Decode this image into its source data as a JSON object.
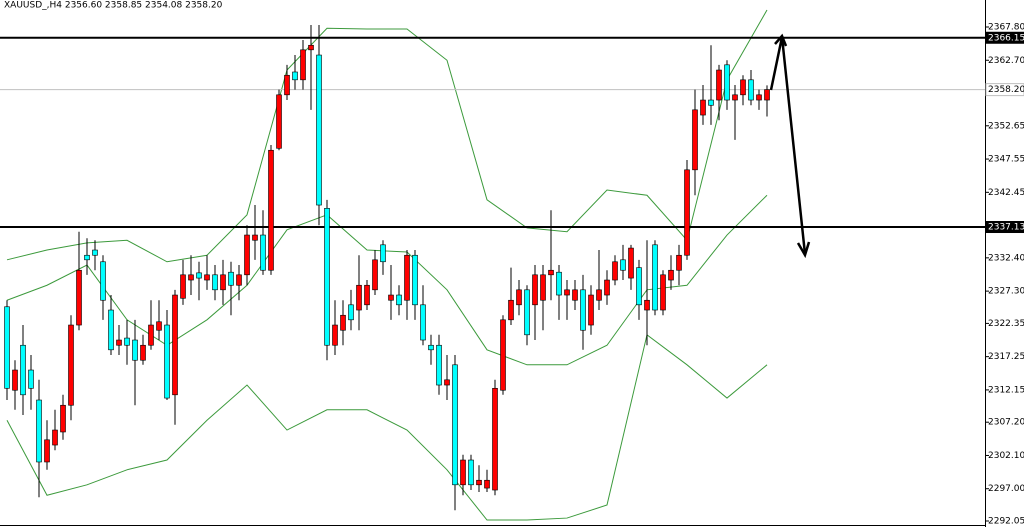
{
  "chart_data": {
    "type": "candlestick",
    "title": "XAUUSD_,H4  2356.60 2358.85 2354.08 2358.20",
    "up_color": "#ff0000",
    "down_color": "#00ffff",
    "ylim": [
      2291.13,
      2371.94
    ],
    "yticks": [
      {
        "value": 2367.8,
        "label": "2367.80"
      },
      {
        "value": 2362.7,
        "label": "2362.70"
      },
      2352.65,
      2347.55,
      2342.45,
      {
        "value": 2332.4,
        "label": "2332.40"
      },
      {
        "value": 2327.3,
        "label": "2327.30"
      },
      2322.35,
      2317.25,
      2312.15,
      {
        "value": 2307.2,
        "label": "2307.20"
      },
      {
        "value": 2302.1,
        "label": "2302.10"
      },
      {
        "value": 2297,
        "label": "2297.00"
      },
      2292.05
    ],
    "ohlc": [
      [
        2324.9,
        2325.9,
        2310.6,
        2312.4
      ],
      [
        2312.1,
        2316.7,
        2309.1,
        2315.2
      ],
      [
        2319.0,
        2322.1,
        2308.3,
        2311.4
      ],
      [
        2315.2,
        2317.5,
        2309.1,
        2312.4
      ],
      [
        2310.6,
        2313.7,
        2295.7,
        2301.1
      ],
      [
        2301.1,
        2307.5,
        2299.9,
        2304.5
      ],
      [
        2303.7,
        2309.1,
        2302.9,
        2306.0
      ],
      [
        2305.7,
        2311.4,
        2304.5,
        2309.8
      ],
      [
        2309.8,
        2323.6,
        2307.5,
        2322.1
      ],
      [
        2322.1,
        2336.4,
        2321.3,
        2330.5
      ],
      [
        2332.8,
        2335.4,
        2329.8,
        2332.1
      ],
      [
        2333.6,
        2335.1,
        2330.5,
        2332.8
      ],
      [
        2331.8,
        2332.8,
        2322.9,
        2325.9
      ],
      [
        2324.4,
        2326.7,
        2317.5,
        2318.3
      ],
      [
        2319.0,
        2322.1,
        2317.5,
        2319.8
      ],
      [
        2320.1,
        2322.9,
        2316.0,
        2319.0
      ],
      [
        2319.8,
        2322.9,
        2309.8,
        2316.7
      ],
      [
        2316.7,
        2320.6,
        2316.0,
        2319.0
      ],
      [
        2319.0,
        2325.9,
        2318.3,
        2322.1
      ],
      [
        2321.3,
        2325.9,
        2319.8,
        2322.6
      ],
      [
        2322.1,
        2324.4,
        2310.6,
        2310.9
      ],
      [
        2311.4,
        2327.5,
        2306.8,
        2326.7
      ],
      [
        2326.2,
        2332.1,
        2325.2,
        2329.8
      ],
      [
        2329.0,
        2332.8,
        2326.7,
        2329.8
      ],
      [
        2330.1,
        2331.8,
        2325.9,
        2329.3
      ],
      [
        2329.0,
        2332.8,
        2327.5,
        2329.8
      ],
      [
        2329.8,
        2331.3,
        2325.9,
        2327.5
      ],
      [
        2327.5,
        2332.1,
        2325.2,
        2329.8
      ],
      [
        2330.2,
        2331.8,
        2323.6,
        2328.2
      ],
      [
        2328.2,
        2331.3,
        2325.9,
        2329.8
      ],
      [
        2329.8,
        2337.4,
        2328.2,
        2335.9
      ],
      [
        2335.1,
        2340.5,
        2332.1,
        2335.9
      ],
      [
        2335.9,
        2339.7,
        2329.8,
        2330.5
      ],
      [
        2330.5,
        2349.7,
        2329.8,
        2348.9
      ],
      [
        2349.2,
        2358.2,
        2348.9,
        2357.4
      ],
      [
        2357.4,
        2362.0,
        2356.6,
        2360.4
      ],
      [
        2360.9,
        2363.5,
        2358.2,
        2359.7
      ],
      [
        2359.7,
        2365.8,
        2358.2,
        2364.3
      ],
      [
        2364.3,
        2368.1,
        2355.1,
        2365.0
      ],
      [
        2363.5,
        2368.1,
        2337.4,
        2340.5
      ],
      [
        2340.0,
        2341.3,
        2316.7,
        2319.0
      ],
      [
        2319.0,
        2325.9,
        2317.5,
        2322.1
      ],
      [
        2321.3,
        2325.9,
        2319.0,
        2323.6
      ],
      [
        2325.2,
        2327.5,
        2321.3,
        2322.9
      ],
      [
        2324.4,
        2332.8,
        2321.3,
        2328.2
      ],
      [
        2325.2,
        2329.0,
        2324.4,
        2328.2
      ],
      [
        2327.5,
        2333.6,
        2326.7,
        2332.1
      ],
      [
        2334.4,
        2335.1,
        2329.8,
        2331.8
      ],
      [
        2325.9,
        2331.3,
        2322.9,
        2326.7
      ],
      [
        2326.7,
        2328.2,
        2323.6,
        2325.2
      ],
      [
        2325.9,
        2333.6,
        2322.9,
        2332.8
      ],
      [
        2332.8,
        2333.6,
        2322.9,
        2325.2
      ],
      [
        2325.2,
        2328.2,
        2319.0,
        2319.8
      ],
      [
        2319.0,
        2320.6,
        2316.0,
        2318.3
      ],
      [
        2319.0,
        2320.6,
        2311.4,
        2312.9
      ],
      [
        2312.9,
        2317.5,
        2310.6,
        2313.7
      ],
      [
        2316.0,
        2317.5,
        2293.7,
        2297.6
      ],
      [
        2297.6,
        2302.2,
        2296.0,
        2301.4
      ],
      [
        2301.4,
        2302.2,
        2296.8,
        2297.6
      ],
      [
        2297.6,
        2300.6,
        2296.5,
        2298.3
      ],
      [
        2297.1,
        2299.9,
        2296.5,
        2298.3
      ],
      [
        2296.8,
        2313.7,
        2296.0,
        2312.4
      ],
      [
        2312.1,
        2323.6,
        2311.4,
        2322.9
      ],
      [
        2322.9,
        2330.9,
        2322.1,
        2325.9
      ],
      [
        2325.2,
        2329.0,
        2323.6,
        2327.5
      ],
      [
        2327.5,
        2328.2,
        2319.0,
        2320.6
      ],
      [
        2325.2,
        2331.3,
        2319.8,
        2329.8
      ],
      [
        2325.9,
        2331.3,
        2321.3,
        2329.8
      ],
      [
        2329.8,
        2339.7,
        2325.9,
        2330.5
      ],
      [
        2330.2,
        2331.3,
        2322.9,
        2326.7
      ],
      [
        2326.7,
        2329.0,
        2322.9,
        2327.5
      ],
      [
        2325.9,
        2329.0,
        2324.4,
        2327.5
      ],
      [
        2327.5,
        2329.8,
        2318.3,
        2321.3
      ],
      [
        2322.1,
        2328.2,
        2320.6,
        2326.7
      ],
      [
        2325.9,
        2333.6,
        2324.4,
        2327.5
      ],
      [
        2326.7,
        2330.5,
        2325.2,
        2329.0
      ],
      [
        2329.0,
        2332.8,
        2328.2,
        2331.8
      ],
      [
        2332.1,
        2334.4,
        2329.0,
        2330.5
      ],
      [
        2329.3,
        2334.4,
        2327.5,
        2333.9
      ],
      [
        2330.9,
        2332.1,
        2322.9,
        2325.2
      ],
      [
        2324.4,
        2335.1,
        2319.0,
        2325.9
      ],
      [
        2334.4,
        2335.1,
        2323.6,
        2324.4
      ],
      [
        2324.4,
        2330.5,
        2323.6,
        2329.8
      ],
      [
        2329.0,
        2332.8,
        2327.5,
        2330.5
      ],
      [
        2330.5,
        2334.4,
        2328.2,
        2332.8
      ],
      [
        2332.8,
        2347.4,
        2332.1,
        2345.9
      ],
      [
        2345.9,
        2358.2,
        2342.0,
        2355.1
      ],
      [
        2354.3,
        2358.9,
        2352.8,
        2356.6
      ],
      [
        2356.6,
        2365.0,
        2352.8,
        2355.8
      ],
      [
        2356.6,
        2362.0,
        2353.5,
        2361.2
      ],
      [
        2362.0,
        2362.7,
        2355.1,
        2356.6
      ],
      [
        2356.6,
        2358.9,
        2350.5,
        2357.4
      ],
      [
        2357.4,
        2360.4,
        2355.8,
        2359.7
      ],
      [
        2359.7,
        2361.2,
        2355.8,
        2356.6
      ],
      [
        2356.6,
        2358.2,
        2355.1,
        2357.4
      ],
      [
        2356.6,
        2358.85,
        2354.08,
        2358.2
      ]
    ],
    "bands": {
      "color": "#3c9a3c",
      "x": [
        0,
        5,
        10,
        15,
        20,
        25,
        30,
        35,
        40,
        45,
        50,
        55,
        60,
        65,
        70,
        75,
        80,
        85,
        90,
        95
      ],
      "series": [
        {
          "values": [
            2332.1,
            2333.6,
            2334.7,
            2335.1,
            2331.8,
            2332.8,
            2339.0,
            2361.2,
            2367.6,
            2367.5,
            2367.5,
            2362.7,
            2341.3,
            2337.0,
            2336.4,
            2342.8,
            2342.0,
            2335.1,
            2359.7,
            2370.4
          ]
        },
        {
          "values": [
            2325.9,
            2328.2,
            2331.3,
            2322.9,
            2319.0,
            2322.9,
            2328.2,
            2336.7,
            2339.0,
            2333.6,
            2333.3,
            2327.5,
            2318.3,
            2316.0,
            2316.0,
            2319.0,
            2327.5,
            2328.2,
            2335.9,
            2342.0
          ]
        },
        {
          "values": [
            2307.5,
            2296.0,
            2297.6,
            2299.9,
            2301.4,
            2307.5,
            2312.9,
            2306.0,
            2309.1,
            2309.1,
            2306.0,
            2299.9,
            2292.2,
            2292.2,
            2292.5,
            2294.5,
            2320.6,
            2316.0,
            2310.9,
            2316.0
          ]
        }
      ]
    },
    "levels": [
      2366.15,
      2337.13
    ],
    "current_price": {
      "value": 2358.2,
      "label": "2358.20"
    }
  }
}
